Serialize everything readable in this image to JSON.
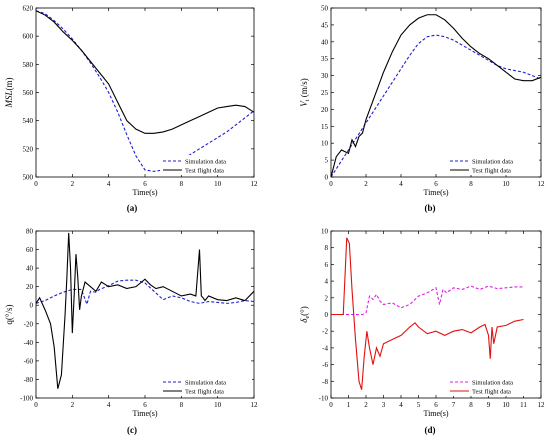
{
  "chart_data": [
    {
      "type": "line",
      "panel_label": "(a)",
      "xlabel": "Time(s)",
      "ylabel": "MSL(m)",
      "xlim": [
        0,
        12
      ],
      "ylim": [
        500,
        620
      ],
      "xticks": [
        0,
        2,
        4,
        6,
        8,
        10,
        12
      ],
      "yticks": [
        500,
        520,
        540,
        560,
        580,
        600,
        620
      ],
      "grid": false,
      "legend": "bottom-right",
      "series": [
        {
          "name": "Simulation data",
          "color": "#1f1fcf",
          "style": "dashed",
          "x": [
            0,
            0.5,
            1,
            1.5,
            2,
            2.5,
            3,
            3.5,
            4,
            4.5,
            5,
            5.5,
            6,
            6.5,
            7,
            7.5,
            8,
            8.5,
            9,
            9.5,
            10,
            10.5,
            11,
            11.5,
            12
          ],
          "y": [
            618,
            616,
            611,
            605,
            598,
            590,
            581,
            571,
            560,
            546,
            530,
            515,
            505,
            504,
            505,
            508,
            512,
            516,
            520,
            524,
            528,
            532,
            537,
            542,
            547
          ]
        },
        {
          "name": "Test flight data",
          "color": "#000000",
          "style": "solid",
          "x": [
            0,
            0.5,
            1,
            1.5,
            2,
            2.5,
            3,
            3.5,
            4,
            4.5,
            5,
            5.5,
            6,
            6.5,
            7,
            7.5,
            8,
            8.5,
            9,
            9.5,
            10,
            10.5,
            11,
            11.5,
            12
          ],
          "y": [
            618,
            615,
            610,
            603,
            597,
            590,
            582,
            574,
            566,
            553,
            540,
            534,
            531,
            531,
            532,
            534,
            537,
            540,
            543,
            546,
            549,
            550,
            551,
            550,
            546
          ]
        }
      ]
    },
    {
      "type": "line",
      "panel_label": "(b)",
      "xlabel": "Time(s)",
      "ylabel": "V",
      "ylabel_sub": "t",
      "ylabel_unit": " (m/s)",
      "xlim": [
        0,
        12
      ],
      "ylim": [
        0,
        50
      ],
      "xticks": [
        0,
        2,
        4,
        6,
        8,
        10,
        12
      ],
      "yticks": [
        0,
        5,
        10,
        15,
        20,
        25,
        30,
        35,
        40,
        45,
        50
      ],
      "grid": false,
      "legend": "bottom-right",
      "series": [
        {
          "name": "Simulation data",
          "color": "#1f1fcf",
          "style": "dashed",
          "x": [
            0,
            0.5,
            1,
            1.5,
            2,
            2.5,
            3,
            3.5,
            4,
            4.5,
            5,
            5.5,
            6,
            6.5,
            7,
            7.5,
            8,
            8.5,
            9,
            9.5,
            10,
            10.5,
            11,
            11.5,
            12
          ],
          "y": [
            0,
            4,
            8,
            12,
            16,
            20,
            24,
            28,
            32,
            36,
            39.5,
            41.5,
            42,
            41.5,
            40.5,
            39,
            37.5,
            36,
            34.5,
            33,
            32,
            31.5,
            31,
            30,
            29
          ]
        },
        {
          "name": "Test flight data",
          "color": "#000000",
          "style": "solid",
          "x": [
            0,
            0.3,
            0.6,
            1,
            1.2,
            1.4,
            1.6,
            1.8,
            2,
            2.5,
            3,
            3.5,
            4,
            4.5,
            5,
            5.5,
            6,
            6.5,
            7,
            7.5,
            8,
            8.5,
            9,
            9.5,
            10,
            10.5,
            11,
            11.5,
            12
          ],
          "y": [
            0,
            6,
            8,
            7,
            11,
            9,
            12,
            13,
            17,
            24,
            31,
            37,
            42,
            45,
            47,
            48,
            48,
            46.5,
            44,
            41,
            38.5,
            36.5,
            35,
            33,
            31,
            29,
            28.5,
            28.5,
            29.5
          ]
        }
      ]
    },
    {
      "type": "line",
      "panel_label": "(c)",
      "xlabel": "Time(s)",
      "ylabel": "q(°/s)",
      "xlim": [
        0,
        12
      ],
      "ylim": [
        -100,
        80
      ],
      "xticks": [
        0,
        2,
        4,
        6,
        8,
        10,
        12
      ],
      "yticks": [
        -100,
        -80,
        -60,
        -40,
        -20,
        0,
        20,
        40,
        60,
        80
      ],
      "grid": false,
      "legend": "bottom-right",
      "series": [
        {
          "name": "Simulation data",
          "color": "#1f1fcf",
          "style": "dashed",
          "x": [
            0,
            0.5,
            1,
            1.5,
            2,
            2.5,
            2.8,
            3,
            3.3,
            3.5,
            4,
            4.5,
            5,
            5.5,
            6,
            6.5,
            7,
            7.5,
            8,
            8.5,
            9,
            9.5,
            10,
            10.5,
            11,
            11.5,
            12
          ],
          "y": [
            2,
            5,
            10,
            14,
            17,
            17,
            1,
            15,
            14,
            17,
            21,
            26,
            27,
            27,
            24,
            15,
            6,
            10,
            8,
            4,
            2,
            4,
            3,
            2,
            3,
            5,
            4
          ]
        },
        {
          "name": "Test flight data",
          "color": "#000000",
          "style": "solid",
          "x": [
            0,
            0.2,
            0.5,
            0.8,
            1,
            1.2,
            1.4,
            1.6,
            1.7,
            1.8,
            1.9,
            2,
            2.1,
            2.2,
            2.3,
            2.4,
            2.5,
            2.7,
            3,
            3.3,
            3.6,
            4,
            4.5,
            5,
            5.5,
            6,
            6.3,
            6.6,
            7,
            7.5,
            8,
            8.5,
            8.8,
            9,
            9.1,
            9.2,
            9.3,
            9.5,
            10,
            10.5,
            11,
            11.5,
            12
          ],
          "y": [
            2,
            8,
            -5,
            -20,
            -45,
            -90,
            -75,
            -10,
            30,
            78,
            40,
            -30,
            10,
            55,
            30,
            -5,
            10,
            25,
            20,
            15,
            25,
            20,
            22,
            18,
            20,
            28,
            22,
            18,
            20,
            15,
            10,
            12,
            10,
            60,
            10,
            8,
            5,
            10,
            6,
            5,
            8,
            5,
            15
          ]
        }
      ]
    },
    {
      "type": "line",
      "panel_label": "(d)",
      "xlabel": "Time(s)",
      "ylabel": "δ",
      "ylabel_sub": "e",
      "ylabel_unit": "(°)",
      "xlim": [
        0,
        12
      ],
      "ylim": [
        -10,
        10
      ],
      "xticks": [
        0,
        1,
        2,
        3,
        4,
        5,
        6,
        7,
        8,
        9,
        10,
        11,
        12
      ],
      "yticks": [
        -10,
        -8,
        -6,
        -4,
        -2,
        0,
        2,
        4,
        6,
        8,
        10
      ],
      "grid": false,
      "legend": "bottom-right",
      "series": [
        {
          "name": "Simulation data",
          "color": "#e020e0",
          "style": "dashed",
          "x": [
            0,
            0.6,
            0.9,
            1.2,
            1.5,
            1.8,
            2,
            2.2,
            2.4,
            2.6,
            2.8,
            3,
            3.5,
            4,
            4.5,
            5,
            5.5,
            6,
            6.2,
            6.4,
            6.6,
            7,
            7.5,
            8,
            8.5,
            9,
            9.5,
            10,
            10.5,
            11
          ],
          "y": [
            0,
            0,
            0,
            0,
            0,
            0,
            0.2,
            2.2,
            1.8,
            2.4,
            1.6,
            1.2,
            1.4,
            0.8,
            1.2,
            2.2,
            2.6,
            3.2,
            1.2,
            3.0,
            2.6,
            3.2,
            3.0,
            3.4,
            3.0,
            3.4,
            3.1,
            3.2,
            3.3,
            3.3
          ]
        },
        {
          "name": "Test flight data",
          "color": "#e01010",
          "style": "solid",
          "x": [
            0,
            0.7,
            0.9,
            1.05,
            1.2,
            1.4,
            1.6,
            1.75,
            1.9,
            2.05,
            2.2,
            2.4,
            2.6,
            2.8,
            3,
            3.5,
            4,
            4.5,
            4.8,
            5,
            5.5,
            6,
            6.5,
            7,
            7.5,
            8,
            8.5,
            8.8,
            9,
            9.1,
            9.2,
            9.3,
            9.5,
            10,
            10.5,
            11
          ],
          "y": [
            0,
            0,
            9.2,
            8.5,
            3,
            -3,
            -8,
            -9,
            -5,
            -2,
            -4,
            -6,
            -4,
            -5,
            -3.5,
            -3,
            -2.5,
            -1.5,
            -1.0,
            -1.5,
            -2.3,
            -2.0,
            -2.5,
            -2.0,
            -1.8,
            -2.2,
            -1.5,
            -1.2,
            -2.5,
            -5.3,
            -1.5,
            -3.5,
            -1.5,
            -1.3,
            -0.8,
            -0.6
          ]
        }
      ]
    }
  ]
}
